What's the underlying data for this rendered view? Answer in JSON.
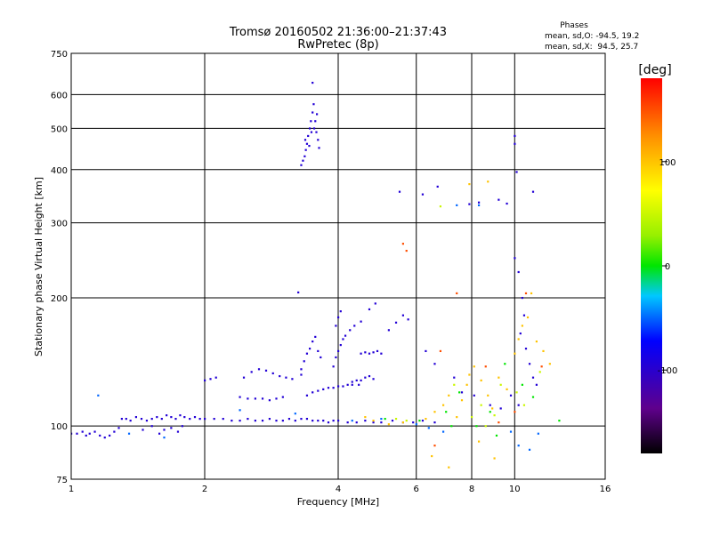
{
  "chart_data": {
    "type": "scatter",
    "title": "Tromsø 20160502 21:36:00–21:37:43",
    "subtitle": "RwPretec (8p)",
    "xlabel": "Frequency [MHz]",
    "ylabel": "Stationary phase Virtual Height [km]",
    "x_scale": "log2",
    "y_scale": "log",
    "xlim": [
      1,
      16
    ],
    "ylim": [
      75,
      750
    ],
    "x_ticks": [
      1,
      2,
      4,
      6,
      8,
      10,
      16
    ],
    "x_tick_labels": [
      "1",
      "2",
      "4",
      "6",
      "8",
      "10",
      "16"
    ],
    "y_ticks": [
      75,
      100,
      200,
      300,
      400,
      500,
      600,
      750
    ],
    "y_tick_labels": [
      "75",
      "100",
      "200",
      "300",
      "400",
      "500",
      "600",
      "750"
    ],
    "grid": true,
    "phase_box": {
      "title": "Phases",
      "line_o": "mean, sd,O: -94.5, 19.2",
      "line_x": "mean, sd,X:  94.5, 25.7"
    },
    "colorbar": {
      "label": "[deg]",
      "range": [
        -180,
        180
      ],
      "tick_values": [
        100,
        0,
        -100
      ],
      "tick_labels": [
        "100",
        "0",
        "-100"
      ],
      "colormap": "rainbow"
    },
    "series": [
      {
        "phase_deg": -95,
        "points": [
          [
            1.0,
            96
          ],
          [
            1.03,
            96
          ],
          [
            1.06,
            97
          ],
          [
            1.08,
            95
          ],
          [
            1.1,
            96
          ],
          [
            1.13,
            97
          ],
          [
            1.16,
            95
          ],
          [
            1.19,
            94
          ],
          [
            1.22,
            95
          ],
          [
            1.25,
            97
          ],
          [
            1.28,
            99
          ],
          [
            1.3,
            104
          ],
          [
            1.33,
            104
          ],
          [
            1.36,
            103
          ],
          [
            1.4,
            105
          ],
          [
            1.44,
            104
          ],
          [
            1.48,
            103
          ],
          [
            1.52,
            104
          ],
          [
            1.56,
            105
          ],
          [
            1.6,
            104
          ],
          [
            1.64,
            106
          ],
          [
            1.68,
            105
          ],
          [
            1.72,
            104
          ],
          [
            1.76,
            106
          ],
          [
            1.8,
            105
          ],
          [
            1.85,
            104
          ],
          [
            1.9,
            105
          ],
          [
            1.95,
            104
          ],
          [
            2.0,
            104
          ],
          [
            2.1,
            104
          ],
          [
            2.2,
            104
          ],
          [
            2.3,
            103
          ],
          [
            2.4,
            103
          ],
          [
            2.5,
            104
          ],
          [
            2.6,
            103
          ],
          [
            2.7,
            103
          ],
          [
            2.8,
            104
          ],
          [
            2.9,
            103
          ],
          [
            3.0,
            103
          ],
          [
            3.1,
            104
          ],
          [
            3.2,
            103
          ],
          [
            3.3,
            104
          ],
          [
            3.4,
            104
          ],
          [
            3.5,
            103
          ],
          [
            3.6,
            103
          ],
          [
            3.7,
            103
          ],
          [
            3.8,
            102
          ],
          [
            3.9,
            103
          ],
          [
            4.0,
            103
          ],
          [
            4.2,
            102
          ],
          [
            4.4,
            102
          ],
          [
            4.6,
            103
          ],
          [
            4.8,
            102
          ],
          [
            5.0,
            102
          ],
          [
            5.3,
            103
          ],
          [
            5.6,
            102
          ],
          [
            5.9,
            102
          ],
          [
            6.2,
            103
          ],
          [
            6.6,
            102
          ],
          [
            1.45,
            98
          ],
          [
            1.52,
            100
          ],
          [
            1.58,
            96
          ],
          [
            1.62,
            98
          ],
          [
            1.68,
            99
          ],
          [
            1.74,
            97
          ],
          [
            1.78,
            100
          ],
          [
            2.0,
            128
          ],
          [
            2.06,
            129
          ],
          [
            2.12,
            130
          ],
          [
            2.45,
            130
          ],
          [
            2.55,
            134
          ],
          [
            2.65,
            136
          ],
          [
            2.75,
            135
          ],
          [
            2.85,
            133
          ],
          [
            2.95,
            131
          ],
          [
            3.05,
            130
          ],
          [
            3.15,
            129
          ],
          [
            3.3,
            132
          ],
          [
            2.4,
            117
          ],
          [
            2.5,
            116
          ],
          [
            2.6,
            116
          ],
          [
            2.7,
            116
          ],
          [
            2.8,
            115
          ],
          [
            2.9,
            116
          ],
          [
            3.0,
            117
          ],
          [
            3.4,
            118
          ],
          [
            3.5,
            120
          ],
          [
            3.6,
            121
          ],
          [
            3.7,
            122
          ],
          [
            3.8,
            123
          ],
          [
            3.9,
            123
          ],
          [
            4.0,
            124
          ],
          [
            4.1,
            124
          ],
          [
            4.2,
            125
          ],
          [
            4.3,
            125
          ],
          [
            4.45,
            125
          ],
          [
            3.3,
            136
          ],
          [
            3.35,
            142
          ],
          [
            3.4,
            148
          ],
          [
            3.45,
            152
          ],
          [
            3.5,
            158
          ],
          [
            3.55,
            162
          ],
          [
            3.6,
            150
          ],
          [
            3.65,
            145
          ],
          [
            3.9,
            138
          ],
          [
            3.95,
            145
          ],
          [
            4.0,
            150
          ],
          [
            4.05,
            155
          ],
          [
            4.1,
            160
          ],
          [
            4.15,
            163
          ],
          [
            4.25,
            168
          ],
          [
            4.35,
            172
          ],
          [
            4.5,
            176
          ],
          [
            4.3,
            127
          ],
          [
            4.4,
            128
          ],
          [
            4.5,
            128
          ],
          [
            4.6,
            130
          ],
          [
            4.7,
            131
          ],
          [
            4.8,
            129
          ],
          [
            4.5,
            148
          ],
          [
            4.6,
            149
          ],
          [
            4.7,
            148
          ],
          [
            4.8,
            149
          ],
          [
            4.9,
            150
          ],
          [
            5.0,
            148
          ],
          [
            5.2,
            168
          ],
          [
            5.4,
            175
          ],
          [
            5.6,
            182
          ],
          [
            5.75,
            178
          ],
          [
            3.95,
            172
          ],
          [
            4.0,
            180
          ],
          [
            4.05,
            186
          ],
          [
            3.25,
            206
          ],
          [
            4.7,
            188
          ],
          [
            4.85,
            194
          ],
          [
            3.3,
            410
          ],
          [
            3.33,
            420
          ],
          [
            3.36,
            430
          ],
          [
            3.38,
            445
          ],
          [
            3.4,
            460
          ],
          [
            3.42,
            480
          ],
          [
            3.45,
            500
          ],
          [
            3.47,
            520
          ],
          [
            3.5,
            545
          ],
          [
            3.52,
            570
          ],
          [
            3.55,
            520
          ],
          [
            3.57,
            490
          ],
          [
            3.6,
            470
          ],
          [
            3.62,
            450
          ],
          [
            3.37,
            470
          ],
          [
            3.44,
            455
          ],
          [
            3.48,
            490
          ],
          [
            3.53,
            500
          ],
          [
            3.58,
            540
          ],
          [
            3.5,
            640
          ],
          [
            5.5,
            355
          ],
          [
            6.2,
            350
          ],
          [
            6.7,
            365
          ],
          [
            7.9,
            332
          ],
          [
            8.3,
            335
          ],
          [
            9.2,
            340
          ],
          [
            9.6,
            333
          ],
          [
            10.1,
            395
          ],
          [
            11.0,
            355
          ],
          [
            10.0,
            480
          ],
          [
            10.0,
            460
          ],
          [
            10.0,
            248
          ],
          [
            10.2,
            230
          ],
          [
            10.4,
            200
          ],
          [
            10.5,
            182
          ],
          [
            10.3,
            165
          ],
          [
            10.6,
            152
          ],
          [
            10.8,
            140
          ],
          [
            11.0,
            130
          ],
          [
            11.2,
            125
          ],
          [
            6.3,
            150
          ],
          [
            6.6,
            140
          ],
          [
            7.3,
            130
          ],
          [
            7.6,
            120
          ],
          [
            8.1,
            118
          ],
          [
            8.8,
            112
          ],
          [
            9.3,
            110
          ],
          [
            9.8,
            118
          ],
          [
            10.2,
            112
          ]
        ]
      },
      {
        "phase_deg": -50,
        "points": [
          [
            1.15,
            118
          ],
          [
            1.35,
            96
          ],
          [
            1.62,
            94
          ],
          [
            2.4,
            109
          ],
          [
            3.2,
            107
          ],
          [
            4.3,
            103
          ],
          [
            5.0,
            104
          ],
          [
            6.0,
            101
          ],
          [
            6.4,
            99
          ],
          [
            6.9,
            97
          ],
          [
            7.4,
            330
          ],
          [
            8.3,
            330
          ],
          [
            9.8,
            97
          ],
          [
            10.2,
            90
          ],
          [
            10.8,
            88
          ],
          [
            11.3,
            96
          ]
        ]
      },
      {
        "phase_deg": 0,
        "points": [
          [
            5.1,
            104
          ],
          [
            6.1,
            103
          ],
          [
            7.0,
            108
          ],
          [
            7.2,
            100
          ],
          [
            7.5,
            120
          ],
          [
            8.2,
            100
          ],
          [
            8.8,
            108
          ],
          [
            9.1,
            95
          ],
          [
            9.5,
            140
          ],
          [
            10.4,
            125
          ],
          [
            11.0,
            117
          ],
          [
            12.6,
            103
          ]
        ]
      },
      {
        "phase_deg": 50,
        "points": [
          [
            5.4,
            104
          ],
          [
            5.7,
            103
          ],
          [
            6.8,
            328
          ],
          [
            7.3,
            125
          ],
          [
            8.0,
            105
          ],
          [
            8.4,
            112
          ],
          [
            8.6,
            100
          ],
          [
            9.0,
            106
          ],
          [
            9.3,
            125
          ],
          [
            10.1,
            120
          ],
          [
            10.5,
            112
          ],
          [
            11.4,
            134
          ]
        ]
      },
      {
        "phase_deg": 100,
        "points": [
          [
            4.6,
            105
          ],
          [
            4.8,
            103
          ],
          [
            5.2,
            101
          ],
          [
            5.6,
            102
          ],
          [
            6.3,
            104
          ],
          [
            6.6,
            108
          ],
          [
            6.9,
            112
          ],
          [
            7.1,
            118
          ],
          [
            7.4,
            105
          ],
          [
            7.6,
            115
          ],
          [
            7.8,
            125
          ],
          [
            7.9,
            132
          ],
          [
            8.1,
            138
          ],
          [
            8.4,
            128
          ],
          [
            8.7,
            118
          ],
          [
            8.9,
            110
          ],
          [
            9.2,
            130
          ],
          [
            9.6,
            122
          ],
          [
            10.0,
            148
          ],
          [
            10.2,
            160
          ],
          [
            10.4,
            172
          ],
          [
            10.7,
            180
          ],
          [
            11.2,
            158
          ],
          [
            11.6,
            150
          ],
          [
            12.0,
            140
          ],
          [
            7.9,
            370
          ],
          [
            8.7,
            375
          ],
          [
            10.9,
            205
          ],
          [
            6.5,
            85
          ],
          [
            7.1,
            80
          ],
          [
            8.3,
            92
          ],
          [
            9.0,
            84
          ]
        ]
      },
      {
        "phase_deg": 150,
        "points": [
          [
            5.6,
            268
          ],
          [
            5.7,
            258
          ],
          [
            6.6,
            90
          ],
          [
            7.4,
            205
          ],
          [
            8.6,
            138
          ],
          [
            9.2,
            102
          ],
          [
            10.6,
            205
          ],
          [
            11.5,
            138
          ],
          [
            6.8,
            150
          ],
          [
            10.0,
            108
          ]
        ]
      }
    ]
  }
}
